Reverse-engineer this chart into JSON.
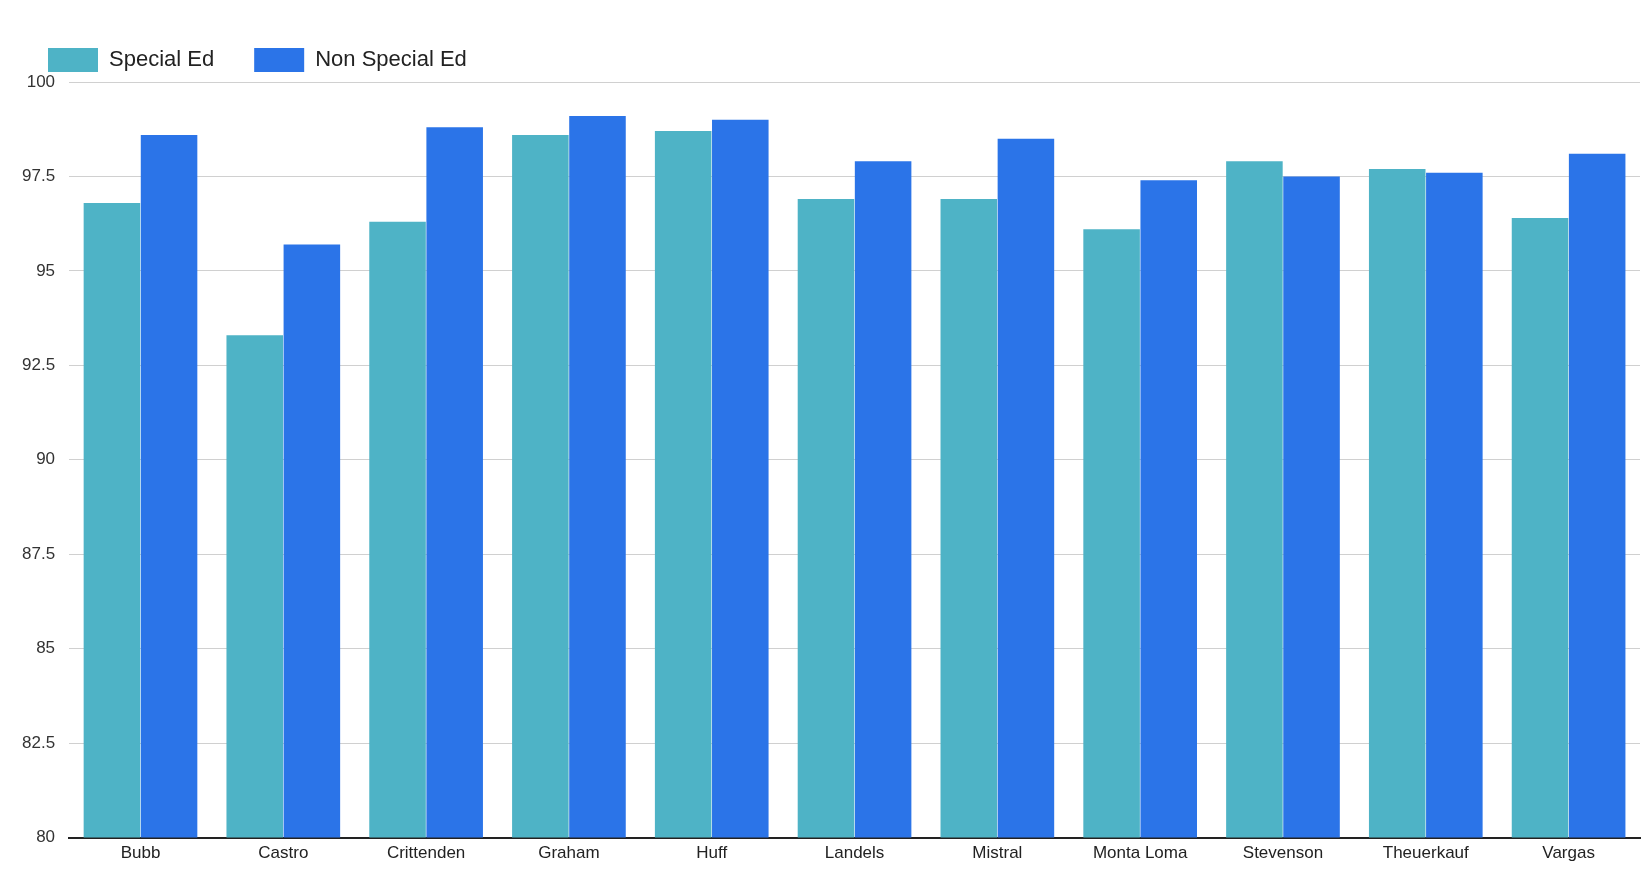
{
  "chart_data": {
    "type": "bar",
    "categories": [
      "Bubb",
      "Castro",
      "Crittenden",
      "Graham",
      "Huff",
      "Landels",
      "Mistral",
      "Monta Loma",
      "Stevenson",
      "Theuerkauf",
      "Vargas"
    ],
    "series": [
      {
        "name": "Special Ed",
        "color": "#4eb3c6",
        "values": [
          96.8,
          93.3,
          96.3,
          98.6,
          98.7,
          96.9,
          96.9,
          96.1,
          97.9,
          97.7,
          96.4
        ]
      },
      {
        "name": "Non Special Ed",
        "color": "#2b74e8",
        "values": [
          98.6,
          95.7,
          98.8,
          99.1,
          99.0,
          97.9,
          98.5,
          97.4,
          97.5,
          97.6,
          98.1
        ]
      }
    ],
    "ylim": [
      80,
      100
    ],
    "yticks": [
      {
        "value": 80,
        "label": "80"
      },
      {
        "value": 82.5,
        "label": "82.5"
      },
      {
        "value": 85,
        "label": "85"
      },
      {
        "value": 87.5,
        "label": "87.5"
      },
      {
        "value": 90,
        "label": "90"
      },
      {
        "value": 92.5,
        "label": "92.5"
      },
      {
        "value": 95,
        "label": "95"
      },
      {
        "value": 97.5,
        "label": "97.5"
      },
      {
        "value": 100,
        "label": "100"
      }
    ],
    "grid": "y",
    "legend": "top left"
  }
}
